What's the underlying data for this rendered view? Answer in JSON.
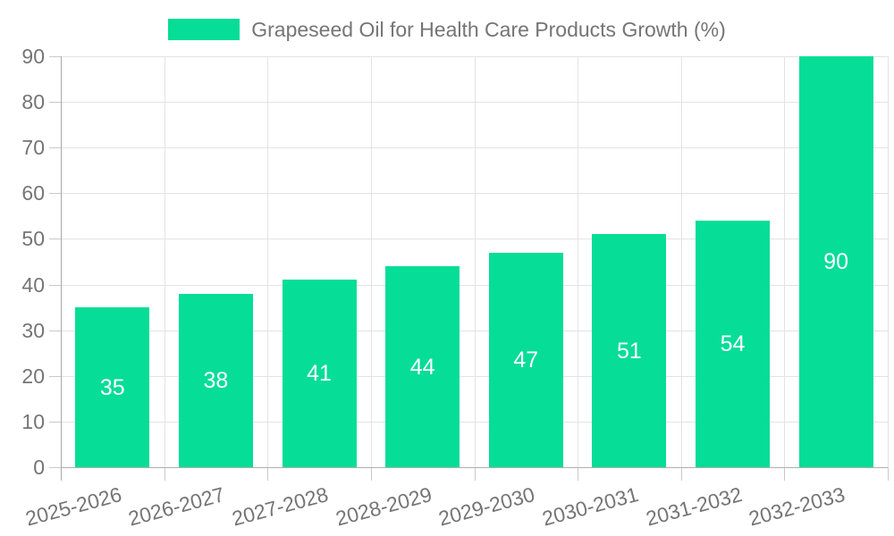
{
  "chart_data": {
    "type": "bar",
    "legend": "Grapeseed Oil for Health Care Products Growth (%)",
    "legend_position": "top-center",
    "categories": [
      "2025-2026",
      "2026-2027",
      "2027-2028",
      "2028-2029",
      "2029-2030",
      "2030-2031",
      "2031-2032",
      "2032-2033"
    ],
    "values": [
      35,
      38,
      41,
      44,
      47,
      51,
      54,
      90
    ],
    "bar_labels": [
      "35",
      "38",
      "41",
      "44",
      "47",
      "51",
      "54",
      "90"
    ],
    "ylim": [
      0,
      90
    ],
    "ytick_step": 10,
    "yticks": [
      "0",
      "10",
      "20",
      "30",
      "40",
      "50",
      "60",
      "70",
      "80",
      "90"
    ],
    "grid": true,
    "x_label_rotation_deg": -15,
    "colors": {
      "bar": "#06DD96",
      "bar_label": "#ffffff",
      "axis_text": "#757575",
      "gridline": "#e3e3e3",
      "y_axis_line": "#a8a8a8",
      "x_axis_line": "#b0b0b0",
      "tick": "#c9c9c9",
      "background": "#ffffff"
    }
  }
}
